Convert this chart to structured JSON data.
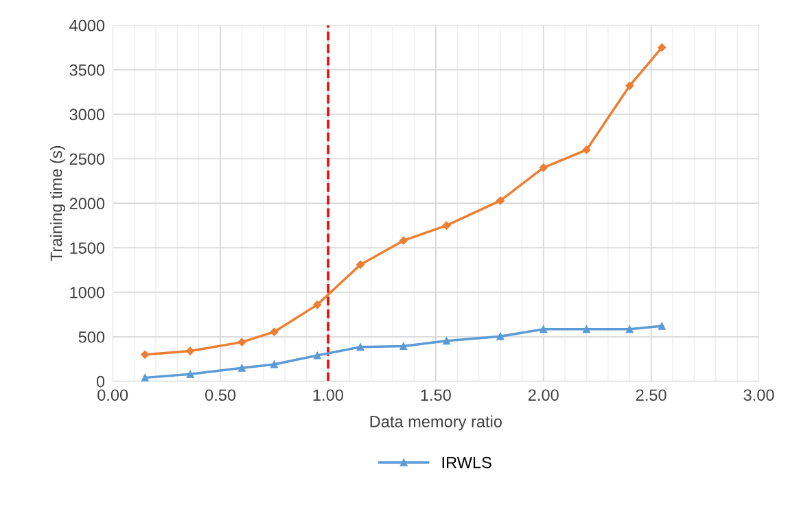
{
  "chart_data": {
    "type": "line",
    "xlabel": "Data memory ratio",
    "ylabel": "Training time (s)",
    "x": [
      0.15,
      0.36,
      0.6,
      0.75,
      0.95,
      1.15,
      1.35,
      1.55,
      1.8,
      2.0,
      2.2,
      2.4,
      2.55
    ],
    "series": [
      {
        "name": "IRWLS",
        "color": "#5b9bd5",
        "marker": "triangle",
        "values": [
          40,
          80,
          150,
          190,
          290,
          385,
          395,
          455,
          505,
          585,
          585,
          585,
          620
        ]
      },
      {
        "color": "#ed7d31",
        "marker": "diamond",
        "values": [
          300,
          340,
          440,
          555,
          860,
          1310,
          1580,
          1750,
          2030,
          2400,
          2600,
          3320,
          3750
        ]
      }
    ],
    "xlim": [
      0,
      3
    ],
    "xticks": [
      {
        "value": 0,
        "label": "0.00"
      },
      {
        "value": 0.5,
        "label": "0.50"
      },
      {
        "value": 1,
        "label": "1.00"
      },
      {
        "value": 1.5,
        "label": "1.50"
      },
      {
        "value": 2,
        "label": "2.00"
      },
      {
        "value": 2.5,
        "label": "2.50"
      },
      {
        "value": 3,
        "label": "3.00"
      }
    ],
    "ylim": [
      0,
      4000
    ],
    "yticks": [
      0,
      500,
      1000,
      1500,
      2000,
      2500,
      3000,
      3500,
      4000
    ],
    "ref_lines": [
      {
        "axis": "x",
        "value": 1,
        "color": "#ff0000",
        "line_style": "dashed"
      }
    ],
    "grid": true,
    "legend": "bottom",
    "line_style": "solid"
  }
}
